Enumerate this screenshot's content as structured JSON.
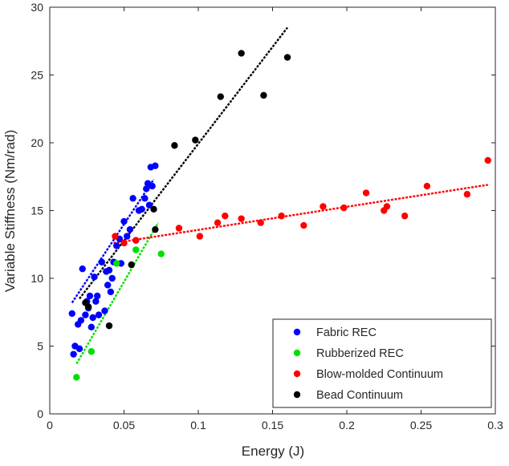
{
  "chart_data": {
    "type": "scatter",
    "title": "",
    "xlabel": "Energy (J)",
    "ylabel": "Variable Stiffness (Nm/rad)",
    "xlim": [
      0,
      0.3
    ],
    "ylim": [
      0,
      30
    ],
    "xticks": [
      "0",
      "0.05",
      "0.1",
      "0.15",
      "0.2",
      "0.25",
      "0.3"
    ],
    "yticks": [
      "0",
      "5",
      "10",
      "15",
      "20",
      "25",
      "30"
    ],
    "grid": false,
    "legend_position": "bottom-right",
    "series": [
      {
        "name": "Fabric REC",
        "color": "#0000ff",
        "points": [
          [
            0.015,
            7.4
          ],
          [
            0.016,
            4.4
          ],
          [
            0.017,
            5.0
          ],
          [
            0.019,
            6.6
          ],
          [
            0.02,
            4.8
          ],
          [
            0.021,
            6.9
          ],
          [
            0.022,
            10.7
          ],
          [
            0.024,
            7.3
          ],
          [
            0.025,
            8.3
          ],
          [
            0.026,
            7.8
          ],
          [
            0.027,
            8.7
          ],
          [
            0.028,
            6.4
          ],
          [
            0.029,
            7.1
          ],
          [
            0.03,
            10.1
          ],
          [
            0.031,
            8.3
          ],
          [
            0.032,
            8.7
          ],
          [
            0.033,
            7.3
          ],
          [
            0.035,
            11.2
          ],
          [
            0.037,
            7.6
          ],
          [
            0.038,
            10.5
          ],
          [
            0.039,
            9.5
          ],
          [
            0.04,
            10.6
          ],
          [
            0.041,
            9.0
          ],
          [
            0.042,
            10.0
          ],
          [
            0.043,
            11.2
          ],
          [
            0.045,
            12.4
          ],
          [
            0.047,
            12.9
          ],
          [
            0.048,
            11.1
          ],
          [
            0.05,
            14.2
          ],
          [
            0.052,
            13.1
          ],
          [
            0.054,
            13.6
          ],
          [
            0.056,
            15.9
          ],
          [
            0.058,
            12.8
          ],
          [
            0.06,
            15.0
          ],
          [
            0.062,
            15.1
          ],
          [
            0.064,
            15.9
          ],
          [
            0.065,
            16.6
          ],
          [
            0.066,
            17.0
          ],
          [
            0.067,
            15.4
          ],
          [
            0.068,
            18.2
          ],
          [
            0.069,
            16.8
          ],
          [
            0.071,
            18.3
          ]
        ],
        "trend": [
          [
            0.015,
            8.2
          ],
          [
            0.07,
            17.3
          ]
        ]
      },
      {
        "name": "Rubberized REC",
        "color": "#00e000",
        "points": [
          [
            0.018,
            2.7
          ],
          [
            0.028,
            4.6
          ],
          [
            0.045,
            11.1
          ],
          [
            0.058,
            12.1
          ],
          [
            0.075,
            11.8
          ]
        ],
        "trend": [
          [
            0.018,
            3.7
          ],
          [
            0.073,
            14.1
          ]
        ]
      },
      {
        "name": "Blow-molded Continuum",
        "color": "#ff0000",
        "points": [
          [
            0.044,
            13.1
          ],
          [
            0.05,
            12.6
          ],
          [
            0.058,
            12.8
          ],
          [
            0.087,
            13.7
          ],
          [
            0.101,
            13.1
          ],
          [
            0.113,
            14.1
          ],
          [
            0.118,
            14.6
          ],
          [
            0.129,
            14.4
          ],
          [
            0.142,
            14.1
          ],
          [
            0.156,
            14.6
          ],
          [
            0.171,
            13.9
          ],
          [
            0.184,
            15.3
          ],
          [
            0.198,
            15.2
          ],
          [
            0.213,
            16.3
          ],
          [
            0.225,
            15.0
          ],
          [
            0.227,
            15.3
          ],
          [
            0.239,
            14.6
          ],
          [
            0.254,
            16.8
          ],
          [
            0.281,
            16.2
          ],
          [
            0.295,
            18.7
          ]
        ],
        "trend": [
          [
            0.043,
            12.6
          ],
          [
            0.295,
            16.9
          ]
        ]
      },
      {
        "name": "Bead Continuum",
        "color": "#000000",
        "points": [
          [
            0.024,
            8.2
          ],
          [
            0.026,
            7.9
          ],
          [
            0.04,
            6.5
          ],
          [
            0.055,
            11.0
          ],
          [
            0.07,
            15.1
          ],
          [
            0.071,
            13.6
          ],
          [
            0.084,
            19.8
          ],
          [
            0.098,
            20.2
          ],
          [
            0.115,
            23.4
          ],
          [
            0.129,
            26.6
          ],
          [
            0.144,
            23.5
          ],
          [
            0.16,
            26.3
          ]
        ],
        "trend": [
          [
            0.02,
            8.5
          ],
          [
            0.16,
            28.5
          ]
        ]
      }
    ]
  }
}
